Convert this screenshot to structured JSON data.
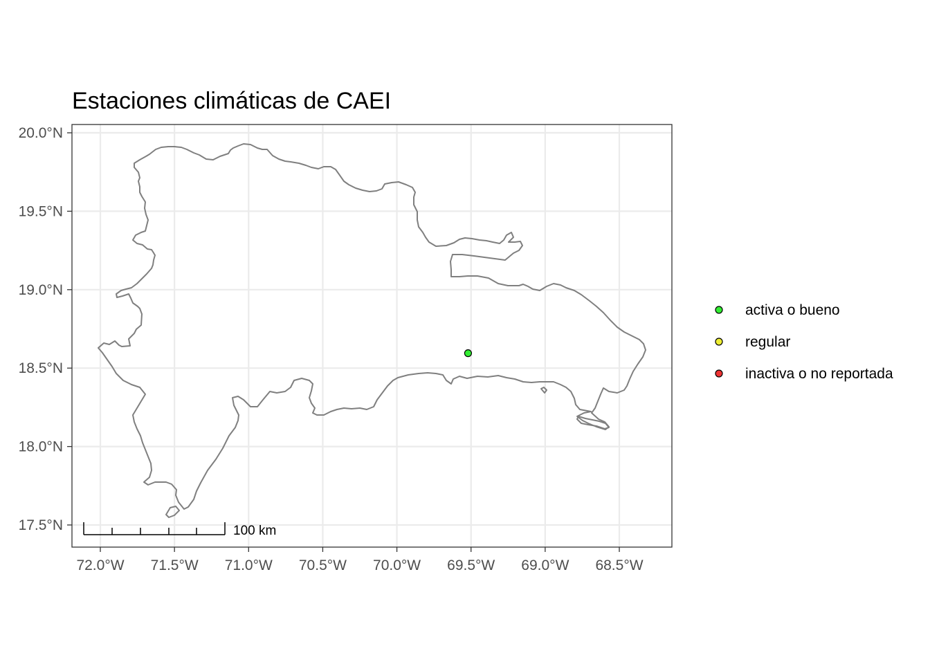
{
  "map": {
    "title": "Estaciones climáticas de CAEI",
    "x_ticks": [
      {
        "lon": -72.0,
        "label": "72.0°W"
      },
      {
        "lon": -71.5,
        "label": "71.5°W"
      },
      {
        "lon": -71.0,
        "label": "71.0°W"
      },
      {
        "lon": -70.5,
        "label": "70.5°W"
      },
      {
        "lon": -70.0,
        "label": "70.0°W"
      },
      {
        "lon": -69.5,
        "label": "69.5°W"
      },
      {
        "lon": -69.0,
        "label": "69.0°W"
      },
      {
        "lon": -68.5,
        "label": "68.5°W"
      }
    ],
    "y_ticks": [
      {
        "lat": 20.0,
        "label": "20.0°N"
      },
      {
        "lat": 19.5,
        "label": "19.5°N"
      },
      {
        "lat": 19.0,
        "label": "19.0°N"
      },
      {
        "lat": 18.5,
        "label": "18.5°N"
      },
      {
        "lat": 18.0,
        "label": "18.0°N"
      },
      {
        "lat": 17.5,
        "label": "17.5°N"
      }
    ],
    "extent": {
      "lon_min": -72.2,
      "lon_max": -68.15,
      "lat_min": 17.36,
      "lat_max": 20.05
    },
    "scale_bar_label": "100 km",
    "stations": [
      {
        "lon": -69.52,
        "lat": 18.595,
        "status": "activa o bueno"
      }
    ],
    "legend": [
      {
        "label": "activa o bueno",
        "color": "#33ee33"
      },
      {
        "label": "regular",
        "color": "#eeee33"
      },
      {
        "label": "inactiva o no reportada",
        "color": "#ee3333"
      }
    ],
    "colors": {
      "coastline": "#7f7f7f",
      "grid": "#ebebeb",
      "panel_border": "#333333"
    }
  }
}
